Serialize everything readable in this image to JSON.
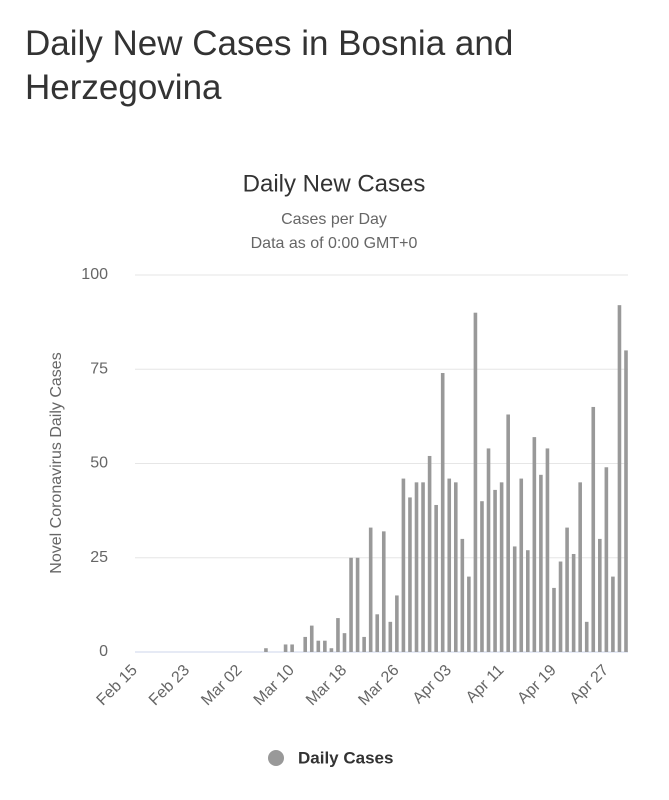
{
  "page_title": "Daily New Cases in Bosnia and Herzegovina",
  "chart_data": {
    "type": "bar",
    "title": "Daily New Cases",
    "subtitle": [
      "Cases per Day",
      "Data as of 0:00 GMT+0"
    ],
    "y_label": "Novel Coronavirus Daily Cases",
    "categories": [
      "Feb 15",
      null,
      null,
      null,
      null,
      null,
      null,
      null,
      "Feb 23",
      null,
      null,
      null,
      null,
      null,
      null,
      null,
      "Mar 02",
      null,
      null,
      null,
      null,
      null,
      null,
      null,
      "Mar 10",
      null,
      null,
      null,
      null,
      null,
      null,
      null,
      "Mar 18",
      null,
      null,
      null,
      null,
      null,
      null,
      null,
      "Mar 26",
      null,
      null,
      null,
      null,
      null,
      null,
      null,
      "Apr 03",
      null,
      null,
      null,
      null,
      null,
      null,
      null,
      "Apr 11",
      null,
      null,
      null,
      null,
      null,
      null,
      null,
      "Apr 19",
      null,
      null,
      null,
      null,
      null,
      null,
      null,
      "Apr 27",
      null,
      null,
      null
    ],
    "series": [
      {
        "name": "Daily Cases",
        "color": "#999999",
        "values": [
          0,
          0,
          0,
          0,
          0,
          0,
          0,
          0,
          0,
          0,
          0,
          0,
          0,
          0,
          0,
          0,
          0,
          0,
          0,
          0,
          1,
          0,
          0,
          2,
          2,
          0,
          4,
          7,
          3,
          3,
          1,
          9,
          5,
          25,
          25,
          4,
          33,
          10,
          32,
          8,
          15,
          46,
          41,
          45,
          45,
          52,
          39,
          74,
          46,
          45,
          30,
          20,
          90,
          40,
          54,
          43,
          45,
          63,
          28,
          46,
          27,
          57,
          47,
          54,
          17,
          24,
          33,
          26,
          45,
          8,
          65,
          30,
          49,
          20,
          92,
          80
        ]
      }
    ],
    "ylim": [
      0,
      100
    ],
    "yticks": [
      0,
      25,
      50,
      75,
      100
    ],
    "grid": true,
    "legend": "bottom"
  }
}
